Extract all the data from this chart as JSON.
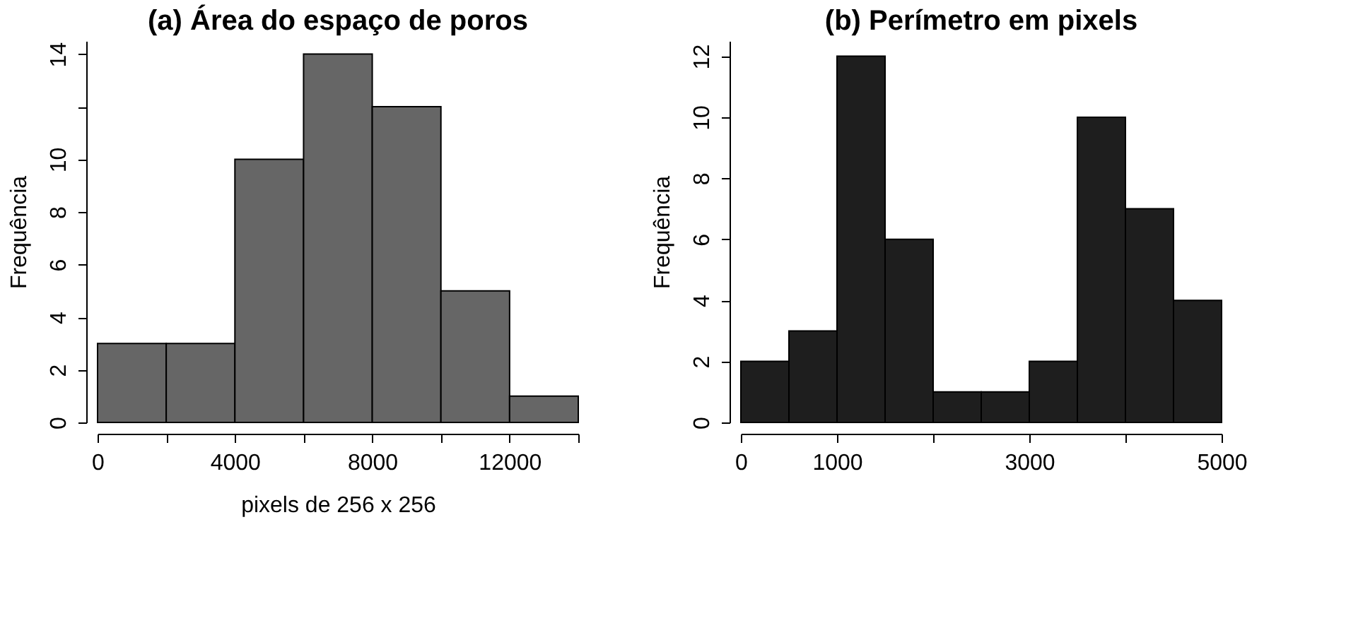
{
  "chart_data": [
    {
      "type": "histogram",
      "title": "(a) Área do espaço de poros",
      "xlabel": "pixels de 256 x 256",
      "ylabel": "Frequência",
      "bins": [
        0,
        2000,
        4000,
        6000,
        8000,
        10000,
        12000,
        14000
      ],
      "values": [
        3,
        3,
        10,
        14,
        12,
        5,
        1
      ],
      "color": "#666666",
      "xlim": [
        0,
        14000
      ],
      "xticks": [
        0,
        {
          "value": 2000,
          "label": null
        },
        4000,
        {
          "value": 6000,
          "label": null
        },
        8000,
        {
          "value": 10000,
          "label": null
        },
        12000,
        {
          "value": 14000,
          "label": null
        }
      ],
      "ylim": [
        0,
        14.5
      ],
      "yticks": [
        0,
        2,
        4,
        6,
        8,
        10,
        {
          "value": 12,
          "label": null
        },
        14
      ],
      "grid": false
    },
    {
      "type": "histogram",
      "title": "(b) Perímetro em pixels",
      "ylabel": "Frequência",
      "bins": [
        0,
        500,
        1000,
        1500,
        2000,
        2500,
        3000,
        3500,
        4000,
        4500,
        5000
      ],
      "values": [
        2,
        3,
        12,
        6,
        1,
        1,
        2,
        10,
        7,
        4
      ],
      "color": "#1e1e1e",
      "xlim": [
        0,
        5000
      ],
      "xticks": [
        0,
        1000,
        {
          "value": 2000,
          "label": null
        },
        3000,
        {
          "value": 4000,
          "label": null
        },
        5000
      ],
      "ylim": [
        0,
        12.5
      ],
      "yticks": [
        0,
        2,
        4,
        6,
        8,
        10,
        12
      ],
      "grid": false
    }
  ]
}
